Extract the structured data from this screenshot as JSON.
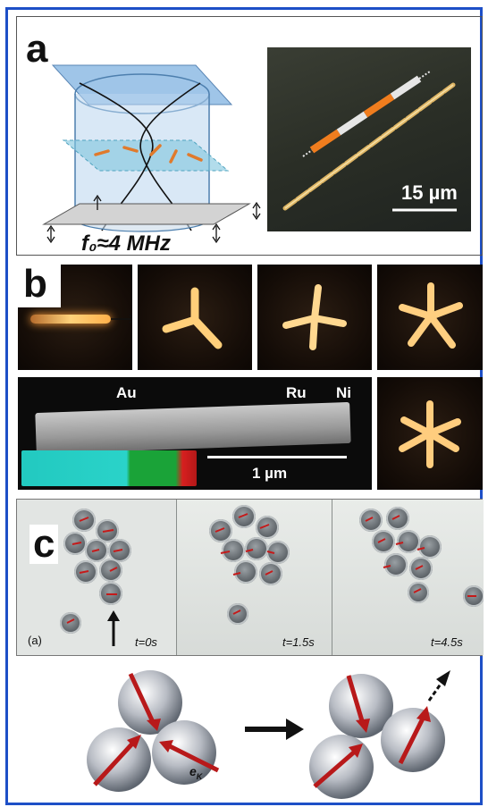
{
  "panels": {
    "a": {
      "label": "a",
      "frequency_text": "f₀≈4 MHz",
      "scale_bar": "15 µm"
    },
    "b": {
      "label": "b",
      "material_labels": [
        "Au",
        "Ru",
        "Ni"
      ],
      "scale_bar": "1 µm"
    },
    "c": {
      "label": "c",
      "subfigure": "(a)",
      "times": [
        "t=0s",
        "t=1.5s",
        "t=4.5s"
      ],
      "vector_label": "e",
      "vector_subscript": "K"
    }
  },
  "colors": {
    "frame_border": "#1d4fc7",
    "arrow_red": "#c51a1a",
    "rod_orange": "#e07a2c"
  }
}
